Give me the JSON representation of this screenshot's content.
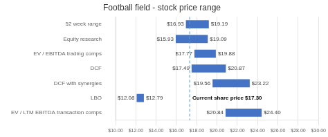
{
  "chart_data": {
    "type": "bar",
    "orientation": "horizontal",
    "title": "Football field - stock price range",
    "categories": [
      "52 week range",
      "Equity research",
      "EV / EBITDA trading comps",
      "DCF",
      "DCF with synergies",
      "LBO",
      "EV / LTM EBITDA transaction comps"
    ],
    "values": [
      [
        16.93,
        19.19
      ],
      [
        15.93,
        19.09
      ],
      [
        17.77,
        19.88
      ],
      [
        17.49,
        20.87
      ],
      [
        19.56,
        23.22
      ],
      [
        12.08,
        12.79
      ],
      [
        20.84,
        24.4
      ]
    ],
    "value_labels": [
      [
        "$16.93",
        "$19.19"
      ],
      [
        "$15.93",
        "$19.09"
      ],
      [
        "$17.77",
        "$19.88"
      ],
      [
        "$17.49",
        "$20.87"
      ],
      [
        "$19.56",
        "$23.22"
      ],
      [
        "$12.08",
        "$12.79"
      ],
      [
        "$20.84",
        "$24.40"
      ]
    ],
    "data_labels": true,
    "color": "#4472C4",
    "xlim": [
      10.0,
      30.0
    ],
    "xticks": [
      {
        "value": 10,
        "label": "$10.00"
      },
      {
        "value": 12,
        "label": "$12.00"
      },
      {
        "value": 14,
        "label": "$14.00"
      },
      {
        "value": 16,
        "label": "$16.00"
      },
      {
        "value": 18,
        "label": "$18.00"
      },
      {
        "value": 20,
        "label": "$20.00"
      },
      {
        "value": 22,
        "label": "$22.00"
      },
      {
        "value": 24,
        "label": "$24.00"
      },
      {
        "value": 26,
        "label": "$26.00"
      },
      {
        "value": 28,
        "label": "$28.00"
      },
      {
        "value": 30,
        "label": "$30.00"
      }
    ],
    "grid": true,
    "reference_line": {
      "value": 17.3,
      "label": "Current share price $17.30",
      "category": "LBO",
      "color": "#5B9BD5",
      "line_style": "dashed"
    }
  }
}
